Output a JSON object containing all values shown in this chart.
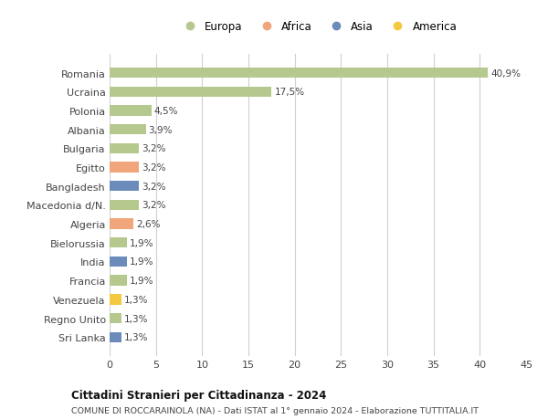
{
  "countries": [
    "Romania",
    "Ucraina",
    "Polonia",
    "Albania",
    "Bulgaria",
    "Egitto",
    "Bangladesh",
    "Macedonia d/N.",
    "Algeria",
    "Bielorussia",
    "India",
    "Francia",
    "Venezuela",
    "Regno Unito",
    "Sri Lanka"
  ],
  "values": [
    40.9,
    17.5,
    4.5,
    3.9,
    3.2,
    3.2,
    3.2,
    3.2,
    2.6,
    1.9,
    1.9,
    1.9,
    1.3,
    1.3,
    1.3
  ],
  "labels": [
    "40,9%",
    "17,5%",
    "4,5%",
    "3,9%",
    "3,2%",
    "3,2%",
    "3,2%",
    "3,2%",
    "2,6%",
    "1,9%",
    "1,9%",
    "1,9%",
    "1,3%",
    "1,3%",
    "1,3%"
  ],
  "continents": [
    "Europa",
    "Europa",
    "Europa",
    "Europa",
    "Europa",
    "Africa",
    "Asia",
    "Europa",
    "Africa",
    "Europa",
    "Asia",
    "Europa",
    "America",
    "Europa",
    "Asia"
  ],
  "continent_colors": {
    "Europa": "#b5c98e",
    "Africa": "#f0a57a",
    "Asia": "#6b8cba",
    "America": "#f5c842"
  },
  "legend_items": [
    {
      "label": "Europa",
      "color": "#b5c98e"
    },
    {
      "label": "Africa",
      "color": "#f0a57a"
    },
    {
      "label": "Asia",
      "color": "#6b8cba"
    },
    {
      "label": "America",
      "color": "#f5c842"
    }
  ],
  "xlim": [
    0,
    45
  ],
  "xticks": [
    0,
    5,
    10,
    15,
    20,
    25,
    30,
    35,
    40,
    45
  ],
  "title": "Cittadini Stranieri per Cittadinanza - 2024",
  "subtitle": "COMUNE DI ROCCARAINOLA (NA) - Dati ISTAT al 1° gennaio 2024 - Elaborazione TUTTITALIA.IT",
  "bg_color": "#ffffff",
  "grid_color": "#d0d0d0",
  "label_fontsize": 7.5,
  "bar_height": 0.55,
  "ytick_fontsize": 8,
  "xtick_fontsize": 8
}
